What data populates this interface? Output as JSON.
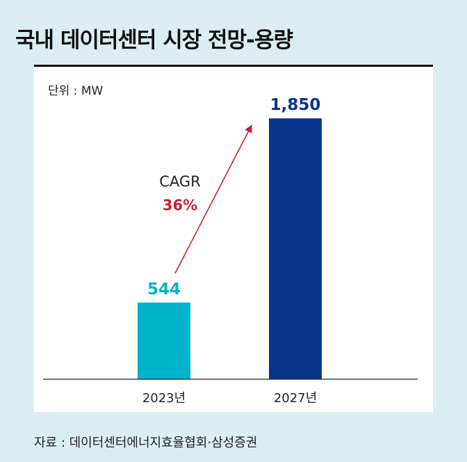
{
  "header": {
    "title": "국내 데이터센터 시장 전망-용량"
  },
  "chart_data": {
    "type": "bar",
    "unit_label": "단위 : MW",
    "categories": [
      "2023년",
      "2027년"
    ],
    "values": [
      544,
      1850
    ],
    "value_labels": [
      "544",
      "1,850"
    ],
    "colors": [
      "#00b3cc",
      "#08348c"
    ],
    "ylim": [
      0,
      1900
    ],
    "annotation": {
      "label": "CAGR",
      "value": "36%",
      "color": "#cc1f2d"
    }
  },
  "footer": {
    "source": "자료 : 데이터센터에너지효율협회·삼성증권"
  }
}
